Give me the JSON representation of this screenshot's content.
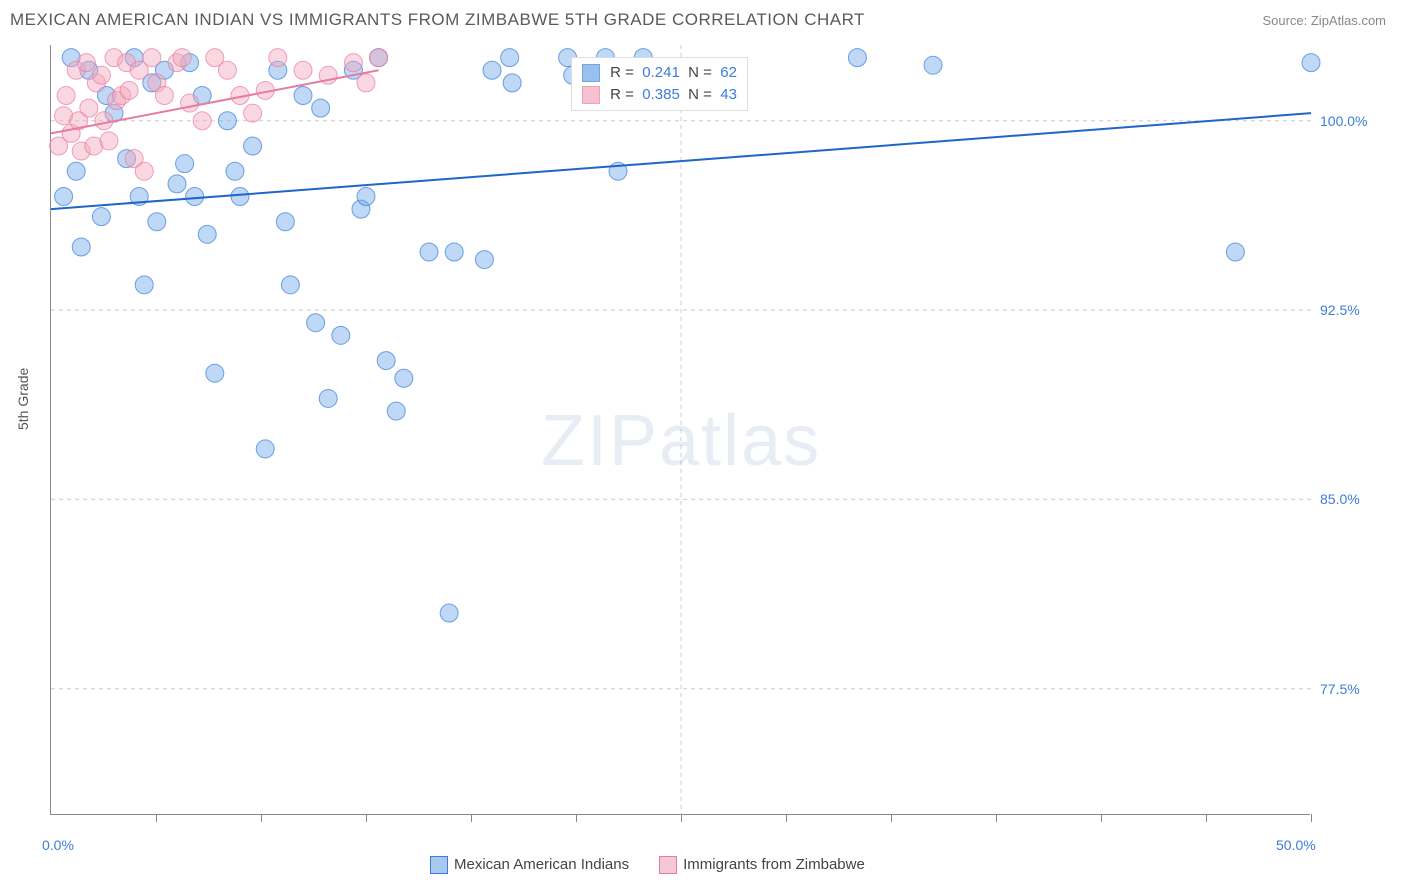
{
  "header": {
    "title": "MEXICAN AMERICAN INDIAN VS IMMIGRANTS FROM ZIMBABWE 5TH GRADE CORRELATION CHART",
    "source": "Source: ZipAtlas.com"
  },
  "chart": {
    "type": "scatter",
    "ylabel": "5th Grade",
    "xlim": [
      0,
      50
    ],
    "ylim": [
      72.5,
      103
    ],
    "xtick_minor": [
      4.17,
      8.33,
      12.5,
      16.67,
      20.83,
      25,
      29.17,
      33.33,
      37.5,
      41.67,
      45.83,
      50
    ],
    "xtick_labels": [
      {
        "x": 0,
        "label": "0.0%"
      },
      {
        "x": 50,
        "label": "50.0%"
      }
    ],
    "ytick_labels": [
      {
        "y": 100,
        "label": "100.0%"
      },
      {
        "y": 92.5,
        "label": "92.5%"
      },
      {
        "y": 85,
        "label": "85.0%"
      },
      {
        "y": 77.5,
        "label": "77.5%"
      }
    ],
    "grid_color": "#cccccc",
    "background_color": "#ffffff",
    "marker_radius": 9,
    "marker_opacity": 0.45,
    "series": [
      {
        "name": "Mexican American Indians",
        "color": "#6fa8e8",
        "stroke": "#3b7dd8",
        "line_color": "#1f66c9",
        "R": "0.241",
        "N": "62",
        "trend": {
          "x1": 0,
          "y1": 96.5,
          "x2": 50,
          "y2": 100.3
        },
        "points": [
          [
            0.5,
            97
          ],
          [
            0.8,
            102.5
          ],
          [
            1,
            98
          ],
          [
            1.2,
            95
          ],
          [
            1.5,
            102
          ],
          [
            2,
            96.2
          ],
          [
            2.2,
            101
          ],
          [
            2.5,
            100.3
          ],
          [
            3,
            98.5
          ],
          [
            3.3,
            102.5
          ],
          [
            3.5,
            97
          ],
          [
            3.7,
            93.5
          ],
          [
            4,
            101.5
          ],
          [
            4.2,
            96
          ],
          [
            4.5,
            102
          ],
          [
            5,
            97.5
          ],
          [
            5.3,
            98.3
          ],
          [
            5.5,
            102.3
          ],
          [
            5.7,
            97
          ],
          [
            6,
            101
          ],
          [
            6.2,
            95.5
          ],
          [
            6.5,
            90
          ],
          [
            7,
            100
          ],
          [
            7.3,
            98
          ],
          [
            7.5,
            97
          ],
          [
            8,
            99
          ],
          [
            8.5,
            87
          ],
          [
            9,
            102
          ],
          [
            9.3,
            96
          ],
          [
            9.5,
            93.5
          ],
          [
            10,
            101
          ],
          [
            10.5,
            92
          ],
          [
            10.7,
            100.5
          ],
          [
            11,
            89
          ],
          [
            11.5,
            91.5
          ],
          [
            12,
            102
          ],
          [
            12.3,
            96.5
          ],
          [
            12.5,
            97
          ],
          [
            13,
            102.5
          ],
          [
            13.3,
            90.5
          ],
          [
            13.7,
            88.5
          ],
          [
            14,
            89.8
          ],
          [
            15,
            94.8
          ],
          [
            15.8,
            80.5
          ],
          [
            16,
            94.8
          ],
          [
            17.2,
            94.5
          ],
          [
            17.5,
            102
          ],
          [
            18.2,
            102.5
          ],
          [
            18.3,
            101.5
          ],
          [
            20.5,
            102.5
          ],
          [
            20.7,
            101.8
          ],
          [
            22,
            102.5
          ],
          [
            22.5,
            98
          ],
          [
            23.5,
            102.5
          ],
          [
            26,
            102
          ],
          [
            32,
            102.5
          ],
          [
            35,
            102.2
          ],
          [
            47,
            94.8
          ],
          [
            50,
            102.3
          ]
        ]
      },
      {
        "name": "Immigrants from Zimbabwe",
        "color": "#f5a8bd",
        "stroke": "#e87ba0",
        "line_color": "#e87ba0",
        "R": "0.385",
        "N": "43",
        "trend": {
          "x1": 0,
          "y1": 99.5,
          "x2": 13,
          "y2": 102
        },
        "points": [
          [
            0.3,
            99
          ],
          [
            0.5,
            100.2
          ],
          [
            0.6,
            101
          ],
          [
            0.8,
            99.5
          ],
          [
            1,
            102
          ],
          [
            1.1,
            100
          ],
          [
            1.2,
            98.8
          ],
          [
            1.4,
            102.3
          ],
          [
            1.5,
            100.5
          ],
          [
            1.7,
            99
          ],
          [
            1.8,
            101.5
          ],
          [
            2,
            101.8
          ],
          [
            2.1,
            100
          ],
          [
            2.3,
            99.2
          ],
          [
            2.5,
            102.5
          ],
          [
            2.6,
            100.8
          ],
          [
            2.8,
            101
          ],
          [
            3,
            102.3
          ],
          [
            3.1,
            101.2
          ],
          [
            3.3,
            98.5
          ],
          [
            3.5,
            102
          ],
          [
            3.7,
            98
          ],
          [
            4,
            102.5
          ],
          [
            4.2,
            101.5
          ],
          [
            4.5,
            101
          ],
          [
            5,
            102.3
          ],
          [
            5.2,
            102.5
          ],
          [
            5.5,
            100.7
          ],
          [
            6,
            100
          ],
          [
            6.5,
            102.5
          ],
          [
            7,
            102
          ],
          [
            7.5,
            101
          ],
          [
            8,
            100.3
          ],
          [
            8.5,
            101.2
          ],
          [
            9,
            102.5
          ],
          [
            10,
            102
          ],
          [
            11,
            101.8
          ],
          [
            12,
            102.3
          ],
          [
            12.5,
            101.5
          ],
          [
            13,
            102.5
          ]
        ]
      }
    ],
    "legend_bottom": [
      {
        "label": "Mexican American Indians",
        "fill": "#a8c8f0",
        "stroke": "#3b7dd8"
      },
      {
        "label": "Immigrants from Zimbabwe",
        "fill": "#f5c8d5",
        "stroke": "#e87ba0"
      }
    ],
    "watermark": {
      "zip": "ZIP",
      "atlas": "atlas"
    }
  }
}
